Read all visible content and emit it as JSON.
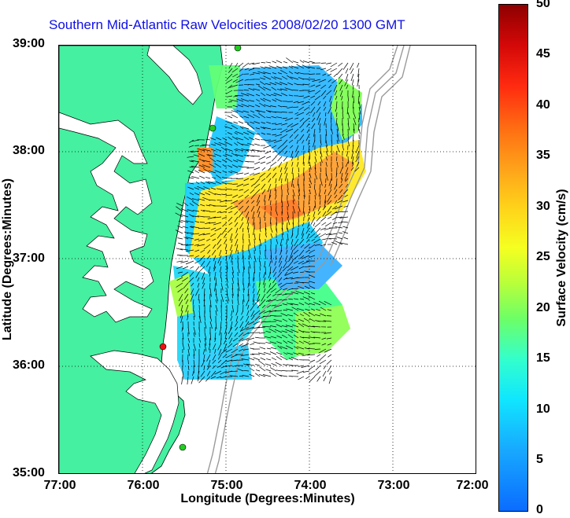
{
  "title": "Southern Mid-Atlantic Raw Velocities 2008/02/20 1300 GMT",
  "xlabel": "Longitude (Degrees:Minutes)",
  "ylabel": "Latitude (Degrees:Minutes)",
  "y_ticks": [
    "39:00",
    "38:00",
    "37:00",
    "36:00",
    "35:00"
  ],
  "x_ticks": [
    "77:00",
    "76:00",
    "75:00",
    "74:00",
    "73:00",
    "72:00"
  ],
  "colorbar": {
    "label": "Surface Velocity (cm/s)",
    "ticks": [
      "50",
      "45",
      "40",
      "35",
      "30",
      "25",
      "20",
      "15",
      "10",
      "5",
      "0"
    ]
  },
  "colors": {
    "land": "#45f0a0",
    "title": "#1010e6",
    "coast_contours": "#9a9a9a",
    "station_green": "#22cc22",
    "station_red": "#ee1111"
  },
  "icons": [
    "station-marker-icon"
  ]
}
